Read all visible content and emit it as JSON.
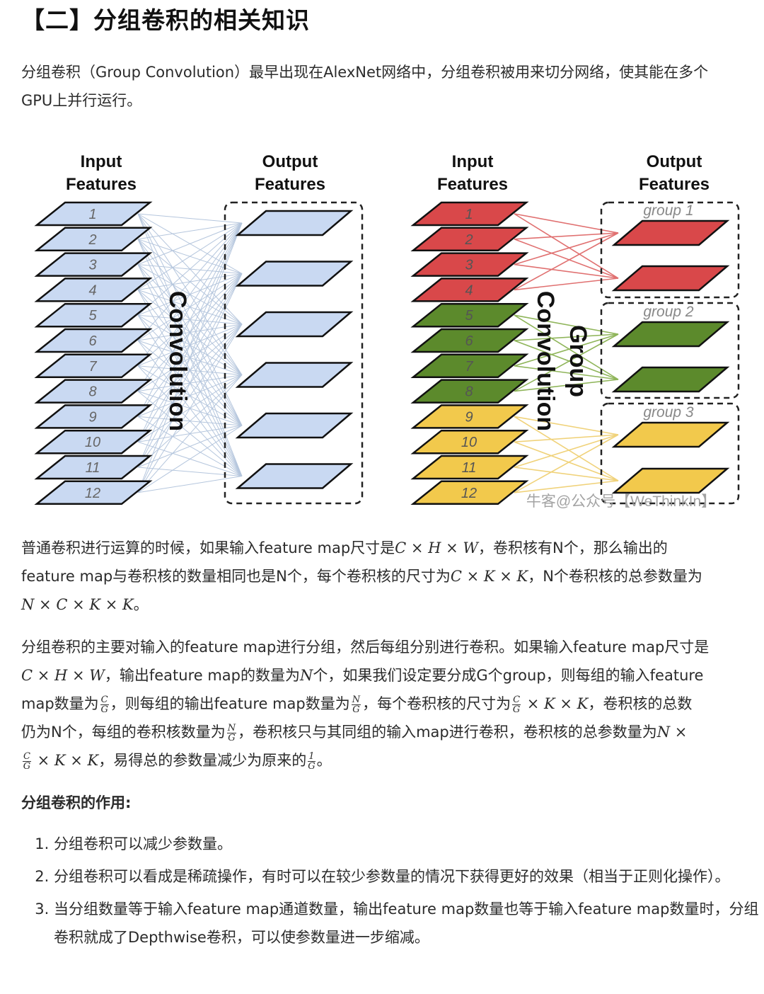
{
  "heading": "【二】分组卷积的相关知识",
  "intro": {
    "line1": "分组卷积（Group Convolution）最早出现在AlexNet网络中，分组卷积被用来切分网络，使其能在多个",
    "line2": "GPU上并行运行。"
  },
  "figure": {
    "left": {
      "input_title_1": "Input",
      "input_title_2": "Features",
      "output_title_1": "Output",
      "output_title_2": "Features",
      "label": "Convolution",
      "input_count": 12,
      "output_count": 6,
      "fill": "#c9d9f2"
    },
    "right": {
      "input_title_1": "Input",
      "input_title_2": "Features",
      "output_title_1": "Output",
      "output_title_2": "Features",
      "label_1": "Group",
      "label_2": "Convolution",
      "groups": [
        "group 1",
        "group 2",
        "group 3"
      ],
      "colors": [
        "#d9484a",
        "#5c8a2c",
        "#f2c94c"
      ]
    },
    "numbers": [
      "1",
      "2",
      "3",
      "4",
      "5",
      "6",
      "7",
      "8",
      "9",
      "10",
      "11",
      "12"
    ],
    "watermark": "牛客@公众号【WeThinkIn】"
  },
  "para1": {
    "a": "普通卷积进行运算的时候，如果输入feature map尺寸是",
    "m1": "C × H × W",
    "b": "，卷积核有N个，那么输出的",
    "c": "feature map与卷积核的数量相同也是N个，每个卷积核的尺寸为",
    "m2": "C × K × K",
    "d": "，N个卷积核的总参数量为",
    "m3": "N × C × K × K",
    "e": "。"
  },
  "para2": {
    "l1": "分组卷积的主要对输入的feature map进行分组，然后每组分别进行卷积。如果输入feature map尺寸是",
    "m1": "C × H × W",
    "l2a": "，输出feature map的数量为",
    "m2": "N",
    "l2b": "个，如果我们设定要分成G个group，则每组的输入feature",
    "l3a": "map数量为",
    "l3b": "，则每组的输出feature map数量为",
    "l3c": "，每个卷积核的尺寸为",
    "m3": "× K × K",
    "l3d": "，卷积核的总数",
    "l4a": "仍为N个，每组的卷积核数量为",
    "l4b": "，卷积核只与其同组的输入map进行卷积，卷积核的总参数量为",
    "m4": "N ×",
    "m5": "× K × K",
    "l5": "，易得总的参数量减少为原来的",
    "end": "。",
    "frac_C": "C",
    "frac_N": "N",
    "frac_1": "1",
    "frac_G": "G"
  },
  "effect_title": "分组卷积的作用:",
  "list": [
    "分组卷积可以减少参数量。",
    "分组卷积可以看成是稀疏操作，有时可以在较少参数量的情况下获得更好的效果（相当于正则化操作）。",
    "当分组数量等于输入feature map通道数量，输出feature map数量也等于输入feature map数量时，分组卷积就成了Depthwise卷积，可以使参数量进一步缩减。"
  ]
}
